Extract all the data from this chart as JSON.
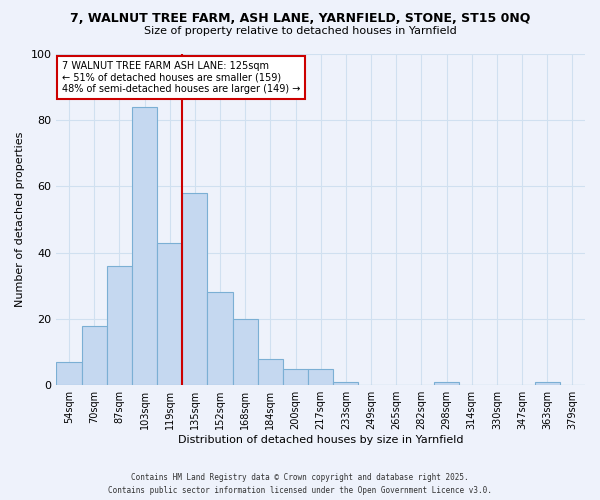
{
  "title_line1": "7, WALNUT TREE FARM, ASH LANE, YARNFIELD, STONE, ST15 0NQ",
  "title_line2": "Size of property relative to detached houses in Yarnfield",
  "xlabel": "Distribution of detached houses by size in Yarnfield",
  "ylabel": "Number of detached properties",
  "bar_labels": [
    "54sqm",
    "70sqm",
    "87sqm",
    "103sqm",
    "119sqm",
    "135sqm",
    "152sqm",
    "168sqm",
    "184sqm",
    "200sqm",
    "217sqm",
    "233sqm",
    "249sqm",
    "265sqm",
    "282sqm",
    "298sqm",
    "314sqm",
    "330sqm",
    "347sqm",
    "363sqm",
    "379sqm"
  ],
  "bar_values": [
    7,
    18,
    36,
    84,
    43,
    58,
    28,
    20,
    8,
    5,
    5,
    1,
    0,
    0,
    0,
    1,
    0,
    0,
    0,
    1,
    0
  ],
  "bar_color": "#c5d8f0",
  "bar_edge_color": "#7bafd4",
  "vline_x": 4.5,
  "vline_color": "#cc0000",
  "annotation_text": "7 WALNUT TREE FARM ASH LANE: 125sqm\n← 51% of detached houses are smaller (159)\n48% of semi-detached houses are larger (149) →",
  "annotation_box_color": "white",
  "annotation_box_edge_color": "#cc0000",
  "ylim": [
    0,
    100
  ],
  "yticks": [
    0,
    20,
    40,
    60,
    80,
    100
  ],
  "grid_color": "#d0e0f0",
  "background_color": "#eef2fb",
  "footer_line1": "Contains HM Land Registry data © Crown copyright and database right 2025.",
  "footer_line2": "Contains public sector information licensed under the Open Government Licence v3.0."
}
